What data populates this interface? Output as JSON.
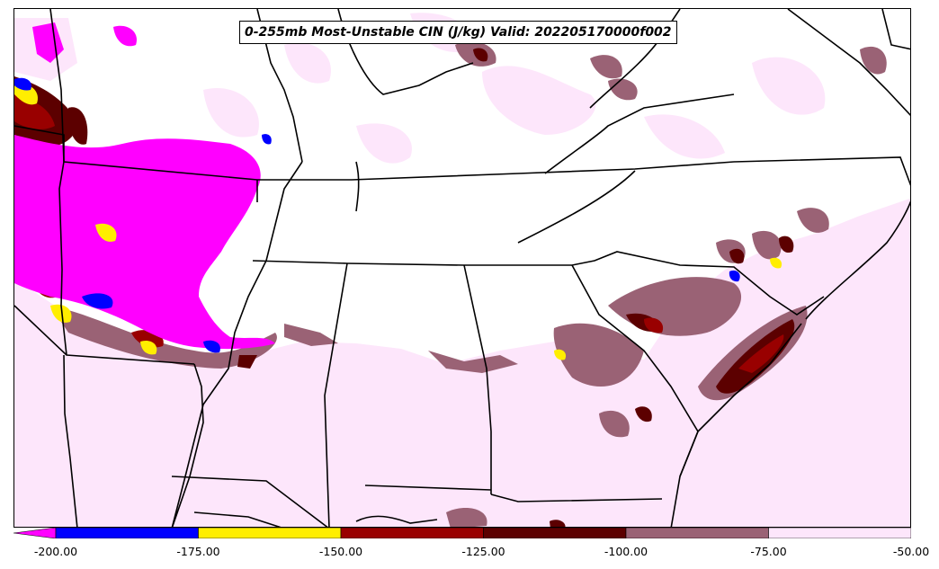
{
  "title": "0-255mb Most-Unstable CIN (J/kg) Valid: 202205170000f002",
  "colorbar": {
    "segments": [
      {
        "from": -200,
        "to": -175,
        "color": "#0000ff"
      },
      {
        "from": -175,
        "to": -150,
        "color": "#ffee00"
      },
      {
        "from": -150,
        "to": -125,
        "color": "#990000"
      },
      {
        "from": -125,
        "to": -100,
        "color": "#5c0000"
      },
      {
        "from": -100,
        "to": -75,
        "color": "#9a6275"
      },
      {
        "from": -75,
        "to": -50,
        "color": "#fde6fb"
      }
    ],
    "below_min_color": "#ff00ff",
    "tick_labels": [
      "-200.00",
      "-175.00",
      "-150.00",
      "-125.00",
      "-100.00",
      "-75.00",
      "-50.00"
    ]
  },
  "colors": {
    "extreme": "#ff00ff",
    "very_strong": "#0000ff",
    "strong": "#ffee00",
    "moderate": "#990000",
    "moderate_dark": "#5c0000",
    "weak": "#9a6275",
    "very_weak": "#fde6fb",
    "boundaries": "#000000"
  }
}
